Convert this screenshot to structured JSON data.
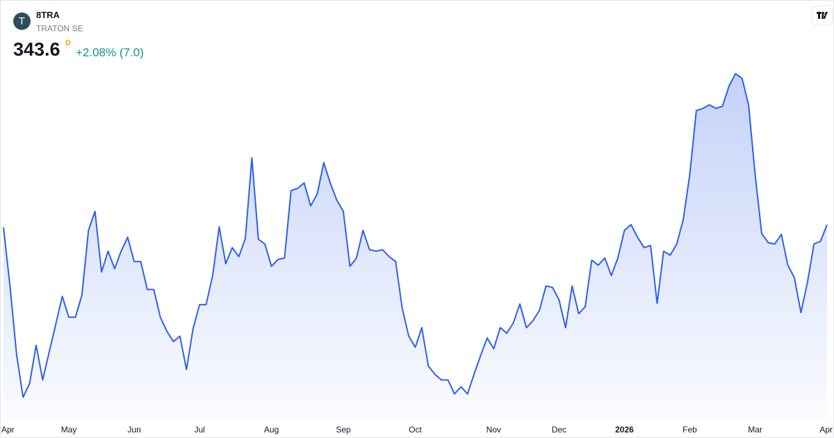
{
  "header": {
    "logo": "T",
    "symbol": "8TRA",
    "name": "TRATON SE",
    "price": "343.6",
    "interval": "D",
    "change": "+2.08% (7.0)"
  },
  "chart_data": {
    "type": "area",
    "color": "#2f5fe8",
    "categories": [
      "Apr",
      null,
      null,
      null,
      null,
      null,
      null,
      null,
      null,
      null,
      "May",
      null,
      null,
      null,
      null,
      null,
      null,
      null,
      null,
      null,
      "Jun",
      null,
      null,
      null,
      null,
      null,
      null,
      null,
      null,
      null,
      "Jul",
      null,
      null,
      null,
      null,
      null,
      null,
      null,
      null,
      null,
      null,
      "Aug",
      null,
      null,
      null,
      null,
      null,
      null,
      null,
      null,
      null,
      null,
      "Sep",
      null,
      null,
      null,
      null,
      null,
      null,
      null,
      null,
      null,
      null,
      "Oct",
      null,
      null,
      null,
      null,
      null,
      null,
      null,
      null,
      null,
      null,
      null,
      "Nov",
      null,
      null,
      null,
      null,
      null,
      null,
      null,
      null,
      null,
      "Dec",
      null,
      null,
      null,
      null,
      null,
      null,
      null,
      null,
      null,
      "2026",
      null,
      null,
      null,
      null,
      null,
      null,
      null,
      null,
      null,
      "Feb",
      null,
      null,
      null,
      null,
      null,
      null,
      null,
      null,
      null,
      "Mar",
      null,
      null,
      null,
      null,
      null,
      null,
      null,
      null,
      null,
      null,
      "Apr"
    ],
    "values": [
      342.4,
      317.7,
      288.9,
      270.7,
      276.5,
      292.7,
      278.0,
      289.8,
      301.5,
      313.3,
      304.5,
      304.5,
      313.9,
      341.2,
      349.2,
      323.6,
      332.4,
      325.0,
      332.4,
      338.3,
      328.0,
      328.0,
      316.2,
      316.2,
      304.5,
      298.6,
      294.2,
      296.5,
      282.4,
      299.5,
      309.8,
      309.8,
      322.1,
      342.7,
      327.1,
      333.9,
      330.1,
      337.7,
      371.8,
      337.4,
      335.4,
      326.0,
      328.9,
      329.5,
      358.0,
      358.9,
      361.2,
      351.5,
      356.5,
      369.8,
      361.2,
      353.9,
      349.2,
      326.0,
      329.5,
      341.2,
      333.0,
      332.4,
      333.0,
      330.1,
      328.0,
      308.3,
      296.5,
      291.8,
      300.1,
      283.9,
      280.4,
      278.0,
      278.0,
      272.1,
      275.1,
      272.1,
      280.4,
      288.3,
      295.7,
      291.2,
      300.1,
      297.7,
      302.1,
      310.1,
      300.1,
      303.0,
      307.4,
      317.7,
      317.1,
      311.8,
      300.1,
      317.7,
      306.0,
      308.9,
      328.6,
      326.5,
      329.5,
      322.1,
      329.5,
      341.2,
      343.6,
      338.3,
      333.9,
      334.8,
      310.4,
      332.4,
      330.7,
      335.4,
      345.7,
      364.8,
      391.8,
      392.7,
      394.2,
      392.7,
      393.6,
      402.1,
      407.4,
      405.4,
      394.2,
      364.8,
      339.8,
      336.0,
      335.4,
      339.5,
      326.5,
      321.2,
      306.5,
      319.2,
      335.4,
      336.6,
      343.6
    ],
    "ylim": [
      262,
      410
    ]
  }
}
